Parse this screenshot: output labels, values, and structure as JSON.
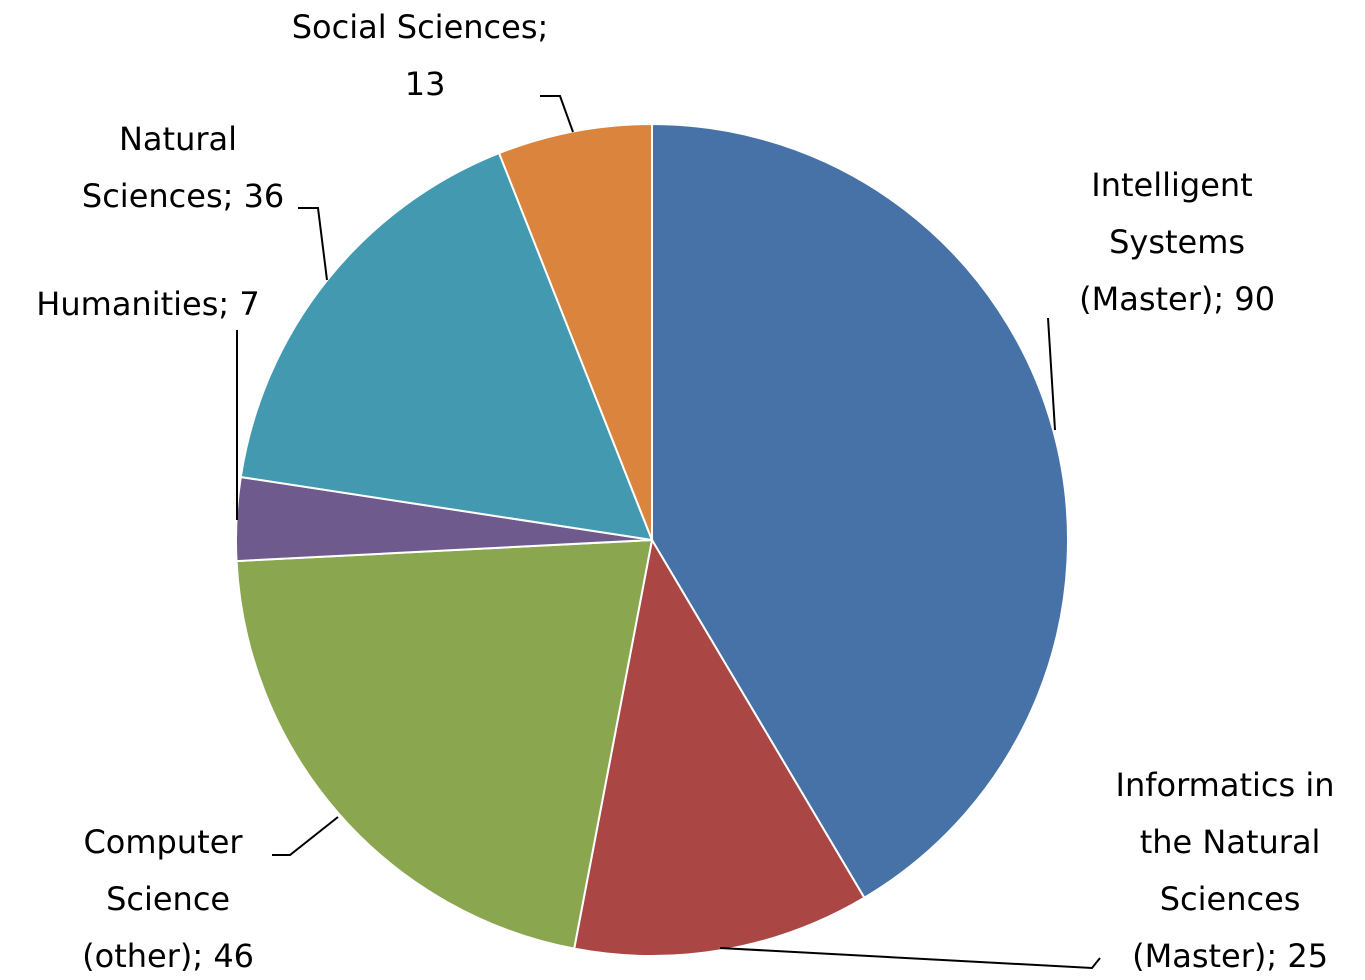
{
  "chart_data": {
    "type": "pie",
    "values": [
      90,
      25,
      46,
      7,
      36,
      13
    ],
    "value_labels": [
      "Intelligent Systems (Master); 90",
      "Informatics in the Natural Sciences (Master); 25",
      "Computer Science (other); 46",
      "Humanities; 7",
      "Natural Sciences; 36",
      "Social Sciences; 13"
    ],
    "colors": [
      "#4672a8",
      "#aa4744",
      "#8aa64f",
      "#6f5a8d",
      "#4299b0",
      "#db843d"
    ],
    "start_angle": 0,
    "direction": "clockwise"
  }
}
